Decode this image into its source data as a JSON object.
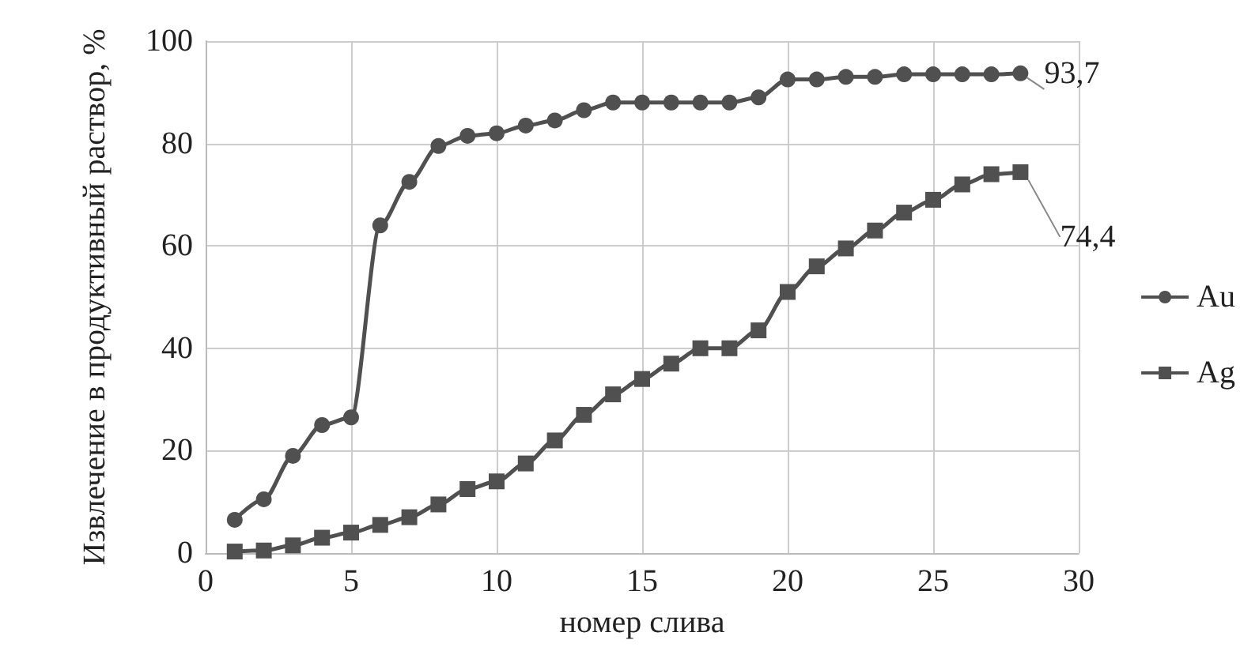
{
  "chart_data": {
    "type": "line",
    "xlabel": "номер слива",
    "ylabel": "Извлечение в продуктивный раствор, %",
    "x": [
      1,
      2,
      3,
      4,
      5,
      6,
      7,
      8,
      9,
      10,
      11,
      12,
      13,
      14,
      15,
      16,
      17,
      18,
      19,
      20,
      21,
      22,
      23,
      24,
      25,
      26,
      27,
      28
    ],
    "series": [
      {
        "name": "Au",
        "color": "#505050",
        "marker": "circle",
        "values": [
          6.5,
          10.5,
          19,
          25,
          26.5,
          64,
          72.5,
          79.5,
          81.5,
          82,
          83.5,
          84.5,
          86.5,
          88,
          88,
          88,
          88,
          88,
          89,
          92.5,
          92.5,
          93,
          93,
          93.5,
          93.5,
          93.5,
          93.5,
          93.7
        ],
        "value_labels": [
          null,
          null,
          null,
          null,
          null,
          null,
          null,
          null,
          null,
          null,
          null,
          null,
          null,
          null,
          null,
          null,
          null,
          null,
          null,
          null,
          null,
          null,
          null,
          null,
          null,
          null,
          null,
          "93,7"
        ]
      },
      {
        "name": "Ag",
        "color": "#505050",
        "marker": "square",
        "values": [
          0.3,
          0.5,
          1.5,
          3,
          4,
          5.5,
          7,
          9.5,
          12.5,
          14,
          17.5,
          22,
          27,
          31,
          34,
          37,
          40,
          40,
          43.5,
          51,
          56,
          59.5,
          63,
          66.5,
          69,
          72,
          74,
          74.4
        ],
        "value_labels": [
          null,
          null,
          null,
          null,
          null,
          null,
          null,
          null,
          null,
          null,
          null,
          null,
          null,
          null,
          null,
          null,
          null,
          null,
          null,
          null,
          null,
          null,
          null,
          null,
          null,
          null,
          null,
          "74,4"
        ]
      }
    ],
    "xlim": [
      0,
      30
    ],
    "xticks": [
      0,
      5,
      10,
      15,
      20,
      25,
      30
    ],
    "ylim": [
      0,
      100
    ],
    "yticks": [
      0,
      20,
      40,
      60,
      80,
      100
    ],
    "grid": true,
    "legend": "right"
  }
}
